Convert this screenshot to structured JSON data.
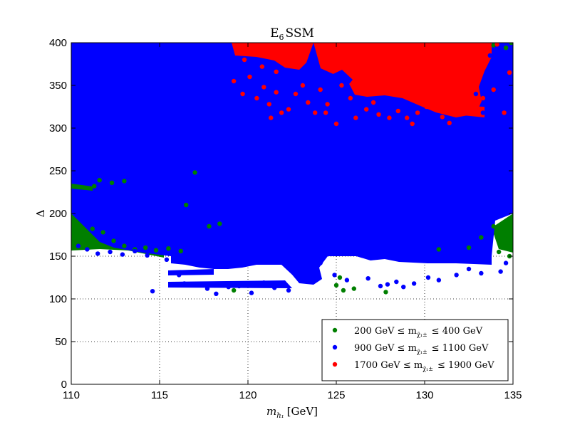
{
  "chart_data": {
    "type": "scatter",
    "title": "E6 SSM",
    "title_main": "E",
    "title_sub": "6",
    "title_rest": "SSM",
    "xlabel": "m_{h_1} [GeV]",
    "xlabel_main": "m",
    "xlabel_sub": "h₁",
    "xlabel_unit": "[GeV]",
    "ylabel": "Δ",
    "xlim": [
      110,
      135
    ],
    "ylim": [
      0,
      400
    ],
    "xticks": [
      "110",
      "115",
      "120",
      "125",
      "130",
      "135"
    ],
    "yticks": [
      "0",
      "50",
      "100",
      "150",
      "200",
      "250",
      "300",
      "350",
      "400"
    ],
    "grid": true,
    "legend_position": "bottom-right",
    "series": [
      {
        "name": "200 GeV ≤ m_{χ̃₁±} ≤ 400 GeV",
        "legend_left": "200 GeV  ≤ m",
        "legend_sub": "χ̃₁±",
        "legend_right": "≤ 400 GeV",
        "color": "#007f00",
        "points": [
          [
            110.3,
            175
          ],
          [
            110.6,
            170
          ],
          [
            111.2,
            182
          ],
          [
            111.8,
            178
          ],
          [
            112.4,
            168
          ],
          [
            113.0,
            162
          ],
          [
            113.6,
            158
          ],
          [
            114.2,
            160
          ],
          [
            114.8,
            157
          ],
          [
            115.5,
            159
          ],
          [
            116.2,
            156
          ],
          [
            116.5,
            210
          ],
          [
            117.0,
            248
          ],
          [
            111.3,
            232
          ],
          [
            111.6,
            239
          ],
          [
            112.3,
            236
          ],
          [
            113.0,
            238
          ],
          [
            117.8,
            185
          ],
          [
            118.4,
            188
          ],
          [
            119.2,
            110
          ],
          [
            125.2,
            125
          ],
          [
            125.4,
            110
          ],
          [
            127.8,
            108
          ],
          [
            130.8,
            158
          ],
          [
            132.5,
            160
          ],
          [
            133.2,
            172
          ],
          [
            133.9,
            185
          ],
          [
            134.3,
            180
          ],
          [
            134.7,
            165
          ],
          [
            134.9,
            190
          ],
          [
            134.6,
            175
          ],
          [
            134.2,
            155
          ],
          [
            134.8,
            150
          ],
          [
            133.9,
            397
          ],
          [
            134.6,
            394
          ],
          [
            134.9,
            400
          ],
          [
            125.0,
            116
          ],
          [
            126.0,
            112
          ]
        ]
      },
      {
        "name": "900 GeV ≤ m_{χ̃₁±} ≤ 1100 GeV",
        "legend_left": "900 GeV  ≤ m",
        "legend_sub": "χ̃₁±",
        "legend_right": "≤ 1100 GeV",
        "color": "#0000ff",
        "points": [
          [
            110.4,
            162
          ],
          [
            110.9,
            158
          ],
          [
            111.5,
            153
          ],
          [
            112.2,
            155
          ],
          [
            112.9,
            152
          ],
          [
            113.6,
            156
          ],
          [
            114.3,
            151
          ],
          [
            114.6,
            109
          ],
          [
            115.4,
            146
          ],
          [
            116.1,
            128
          ],
          [
            116.4,
            118
          ],
          [
            116.9,
            116
          ],
          [
            117.7,
            112
          ],
          [
            118.2,
            106
          ],
          [
            118.9,
            114
          ],
          [
            119.5,
            115
          ],
          [
            120.2,
            107
          ],
          [
            120.9,
            119
          ],
          [
            121.5,
            113
          ],
          [
            122.3,
            110
          ],
          [
            124.9,
            128
          ],
          [
            125.6,
            122
          ],
          [
            126.8,
            124
          ],
          [
            127.5,
            115
          ],
          [
            127.9,
            117
          ],
          [
            128.4,
            120
          ],
          [
            128.8,
            114
          ],
          [
            129.4,
            118
          ],
          [
            130.2,
            125
          ],
          [
            130.8,
            122
          ],
          [
            131.8,
            128
          ],
          [
            132.5,
            135
          ],
          [
            133.2,
            130
          ],
          [
            134.3,
            132
          ],
          [
            134.6,
            142
          ],
          [
            133.7,
            170
          ],
          [
            134.1,
            225
          ],
          [
            134.7,
            280
          ],
          [
            134.8,
            330
          ],
          [
            134.5,
            372
          ],
          [
            133.7,
            385
          ],
          [
            134.8,
            360
          ],
          [
            132.9,
            340
          ],
          [
            133.3,
            318
          ],
          [
            130.1,
            158
          ],
          [
            124.1,
            142
          ]
        ]
      },
      {
        "name": "1700 GeV ≤ m_{χ̃₁±} ≤ 1900 GeV",
        "legend_left": "1700 GeV  ≤ m",
        "legend_sub": "χ̃₁±",
        "legend_right": "≤ 1900 GeV",
        "color": "#ff0000",
        "points": [
          [
            119.2,
            355
          ],
          [
            119.7,
            340
          ],
          [
            120.1,
            360
          ],
          [
            120.5,
            335
          ],
          [
            120.9,
            348
          ],
          [
            121.2,
            328
          ],
          [
            121.6,
            342
          ],
          [
            121.3,
            312
          ],
          [
            121.9,
            318
          ],
          [
            122.3,
            322
          ],
          [
            122.7,
            340
          ],
          [
            123.1,
            350
          ],
          [
            123.4,
            330
          ],
          [
            123.8,
            318
          ],
          [
            124.1,
            345
          ],
          [
            124.5,
            328
          ],
          [
            125.3,
            350
          ],
          [
            125.8,
            335
          ],
          [
            126.1,
            312
          ],
          [
            126.7,
            322
          ],
          [
            127.1,
            330
          ],
          [
            127.4,
            316
          ],
          [
            128.0,
            312
          ],
          [
            128.5,
            320
          ],
          [
            129.0,
            312
          ],
          [
            129.3,
            305
          ],
          [
            129.6,
            318
          ],
          [
            130.1,
            325
          ],
          [
            130.6,
            330
          ],
          [
            131.0,
            313
          ],
          [
            131.4,
            306
          ],
          [
            131.9,
            318
          ],
          [
            132.4,
            325
          ],
          [
            132.9,
            320
          ],
          [
            133.3,
            335
          ],
          [
            133.9,
            345
          ],
          [
            134.5,
            318
          ],
          [
            134.8,
            365
          ],
          [
            134.1,
            398
          ],
          [
            133.4,
            385
          ],
          [
            132.7,
            372
          ],
          [
            120.8,
            372
          ],
          [
            121.6,
            366
          ],
          [
            122.0,
            387
          ],
          [
            119.8,
            380
          ],
          [
            124.4,
            318
          ],
          [
            125.0,
            305
          ]
        ]
      }
    ]
  }
}
